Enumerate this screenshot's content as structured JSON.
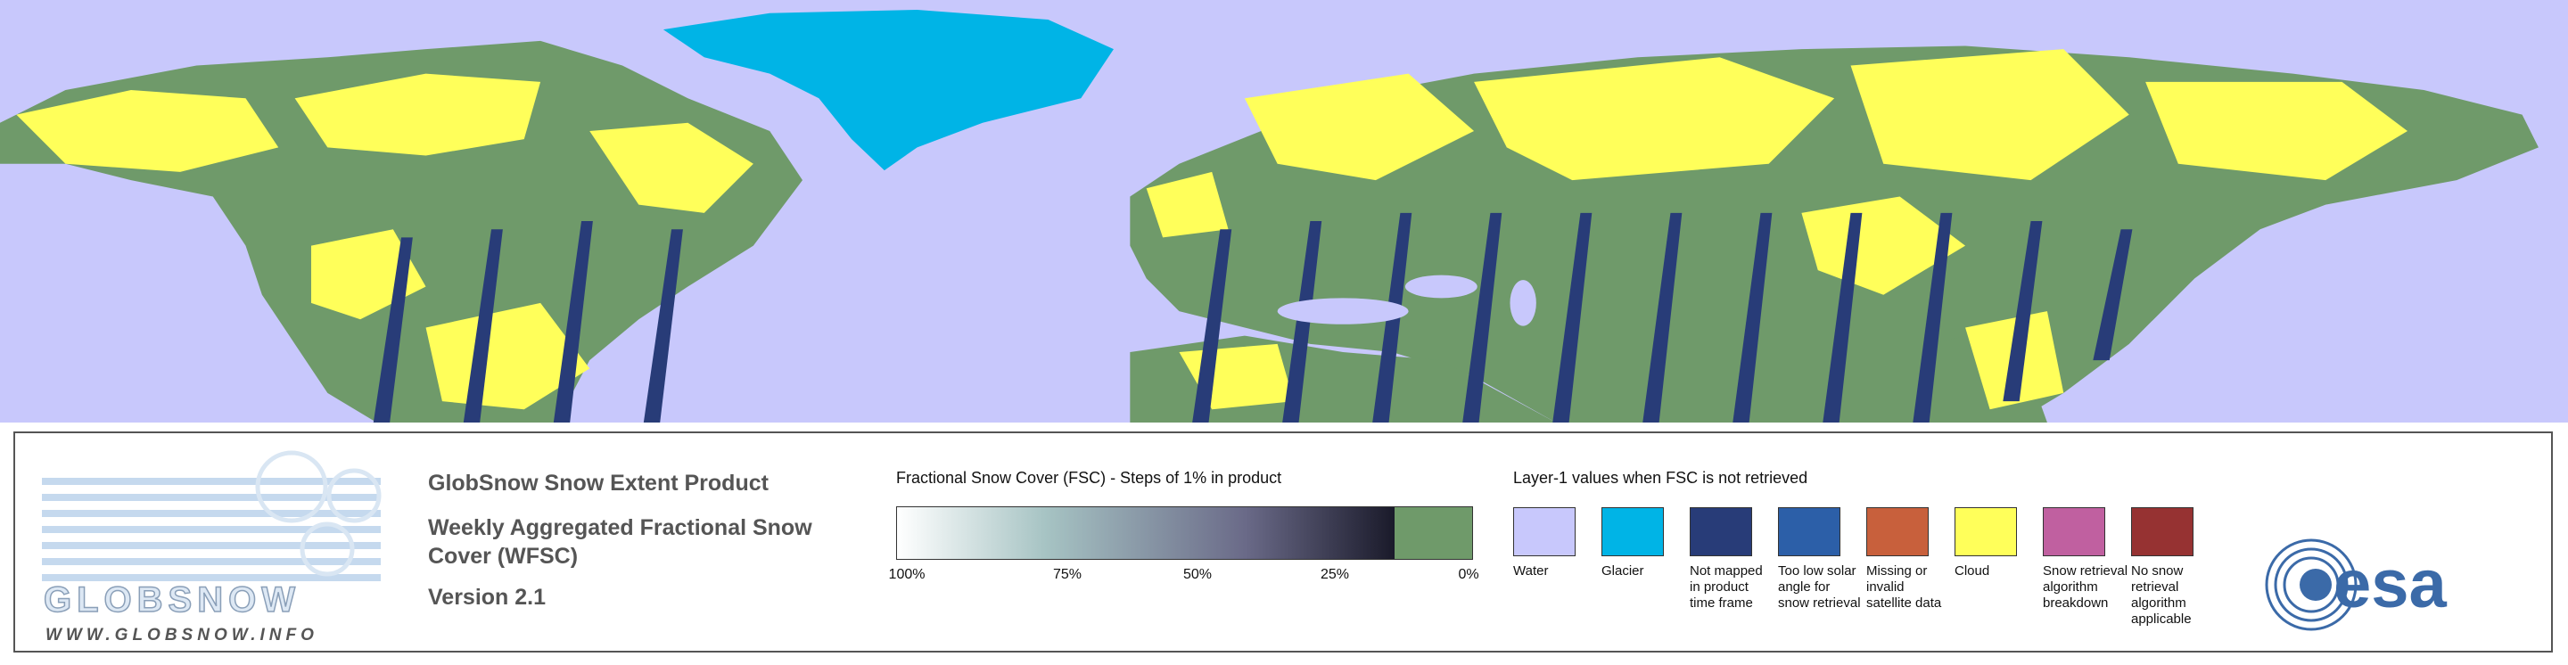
{
  "logo": {
    "name": "GLOBSNOW",
    "url": "WWW.GLOBSNOW.INFO"
  },
  "product": {
    "title": "GlobSnow Snow Extent Product",
    "subtitle": "Weekly Aggregated Fractional Snow Cover (WFSC)",
    "version": "Version 2.1"
  },
  "fsc_legend": {
    "title": "Fractional Snow Cover (FSC) - Steps of 1% in product",
    "ticks": [
      "100%",
      "75%",
      "50%",
      "25%",
      "0%"
    ]
  },
  "layer1_legend": {
    "title": "Layer-1 values when FSC is not retrieved",
    "items": [
      {
        "label": "Water",
        "color": "#c8c8fc"
      },
      {
        "label": "Glacier",
        "color": "#00b4e6"
      },
      {
        "label": "Not mapped in product time frame",
        "color": "#283c78"
      },
      {
        "label": "Too low solar angle for snow retrieval",
        "color": "#2c5fa8"
      },
      {
        "label": "Missing or invalid satellite data",
        "color": "#c8603c"
      },
      {
        "label": "Cloud",
        "color": "#ffff5a"
      },
      {
        "label": "Snow retrieval algorithm breakdown",
        "color": "#c060a0"
      },
      {
        "label": "No snow retrieval algorithm applicable",
        "color": "#963232"
      }
    ]
  },
  "esa_logo": "esa"
}
